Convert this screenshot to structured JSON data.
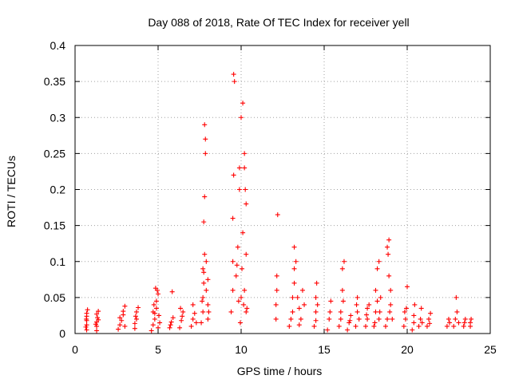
{
  "chart_data": {
    "type": "scatter",
    "title": "Day 088 of 2018, Rate Of TEC Index for receiver yell",
    "xlabel": "GPS time / hours",
    "ylabel": "ROTI / TECUs",
    "xlim": [
      0,
      25
    ],
    "ylim": [
      0,
      0.4
    ],
    "xticks": [
      0,
      5,
      10,
      15,
      20,
      25
    ],
    "xtick_labels": [
      "0",
      "5",
      "10",
      "15",
      "20",
      "25"
    ],
    "yticks": [
      0,
      0.05,
      0.1,
      0.15,
      0.2,
      0.25,
      0.3,
      0.35,
      0.4
    ],
    "ytick_labels": [
      "0",
      "0.05",
      "0.1",
      "0.15",
      "0.2",
      "0.25",
      "0.3",
      "0.35",
      "0.4"
    ],
    "grid": true,
    "marker": "+",
    "color": "#ff0000",
    "series": [
      {
        "name": "ROTI",
        "points": [
          [
            0.7,
            0.005
          ],
          [
            0.7,
            0.012
          ],
          [
            0.7,
            0.018
          ],
          [
            0.7,
            0.024
          ],
          [
            0.7,
            0.028
          ],
          [
            0.75,
            0.033
          ],
          [
            0.65,
            0.009
          ],
          [
            0.68,
            0.02
          ],
          [
            1.3,
            0.004
          ],
          [
            1.3,
            0.01
          ],
          [
            1.3,
            0.016
          ],
          [
            1.35,
            0.022
          ],
          [
            1.3,
            0.027
          ],
          [
            1.4,
            0.031
          ],
          [
            1.25,
            0.013
          ],
          [
            1.4,
            0.019
          ],
          [
            2.6,
            0.006
          ],
          [
            2.7,
            0.012
          ],
          [
            2.8,
            0.018
          ],
          [
            2.9,
            0.026
          ],
          [
            2.9,
            0.031
          ],
          [
            3.0,
            0.038
          ],
          [
            2.7,
            0.022
          ],
          [
            3.0,
            0.01
          ],
          [
            3.6,
            0.007
          ],
          [
            3.6,
            0.014
          ],
          [
            3.7,
            0.02
          ],
          [
            3.7,
            0.03
          ],
          [
            3.8,
            0.036
          ],
          [
            3.65,
            0.024
          ],
          [
            4.6,
            0.004
          ],
          [
            4.7,
            0.012
          ],
          [
            4.8,
            0.02
          ],
          [
            4.8,
            0.028
          ],
          [
            4.9,
            0.035
          ],
          [
            4.9,
            0.045
          ],
          [
            5.0,
            0.055
          ],
          [
            4.85,
            0.063
          ],
          [
            5.05,
            0.025
          ],
          [
            5.1,
            0.015
          ],
          [
            4.75,
            0.04
          ],
          [
            4.95,
            0.06
          ],
          [
            5.0,
            0.008
          ],
          [
            4.7,
            0.03
          ],
          [
            5.7,
            0.008
          ],
          [
            5.8,
            0.016
          ],
          [
            5.85,
            0.058
          ],
          [
            5.9,
            0.022
          ],
          [
            5.75,
            0.012
          ],
          [
            6.3,
            0.008
          ],
          [
            6.4,
            0.018
          ],
          [
            6.5,
            0.03
          ],
          [
            6.45,
            0.024
          ],
          [
            6.35,
            0.035
          ],
          [
            7.0,
            0.01
          ],
          [
            7.1,
            0.02
          ],
          [
            7.2,
            0.028
          ],
          [
            7.1,
            0.04
          ],
          [
            7.3,
            0.015
          ],
          [
            7.6,
            0.015
          ],
          [
            7.7,
            0.03
          ],
          [
            7.7,
            0.05
          ],
          [
            7.75,
            0.07
          ],
          [
            7.75,
            0.085
          ],
          [
            7.8,
            0.11
          ],
          [
            7.75,
            0.155
          ],
          [
            7.8,
            0.19
          ],
          [
            7.85,
            0.25
          ],
          [
            7.85,
            0.27
          ],
          [
            7.8,
            0.29
          ],
          [
            7.9,
            0.06
          ],
          [
            8.0,
            0.04
          ],
          [
            8.0,
            0.02
          ],
          [
            7.9,
            0.1
          ],
          [
            8.0,
            0.075
          ],
          [
            7.7,
            0.09
          ],
          [
            7.65,
            0.045
          ],
          [
            8.05,
            0.03
          ],
          [
            9.4,
            0.03
          ],
          [
            9.5,
            0.06
          ],
          [
            9.5,
            0.1
          ],
          [
            9.5,
            0.16
          ],
          [
            9.55,
            0.22
          ],
          [
            9.55,
            0.36
          ],
          [
            9.6,
            0.35
          ],
          [
            9.7,
            0.08
          ],
          [
            9.8,
            0.12
          ],
          [
            9.9,
            0.2
          ],
          [
            9.9,
            0.23
          ],
          [
            10.0,
            0.05
          ],
          [
            10.0,
            0.3
          ],
          [
            10.1,
            0.32
          ],
          [
            10.1,
            0.14
          ],
          [
            10.2,
            0.25
          ],
          [
            10.2,
            0.23
          ],
          [
            10.3,
            0.18
          ],
          [
            10.3,
            0.11
          ],
          [
            10.2,
            0.06
          ],
          [
            10.3,
            0.03
          ],
          [
            9.95,
            0.015
          ],
          [
            10.05,
            0.09
          ],
          [
            10.15,
            0.04
          ],
          [
            9.85,
            0.045
          ],
          [
            10.25,
            0.2
          ],
          [
            9.75,
            0.095
          ],
          [
            10.35,
            0.035
          ],
          [
            12.1,
            0.02
          ],
          [
            12.1,
            0.04
          ],
          [
            12.15,
            0.08
          ],
          [
            12.2,
            0.165
          ],
          [
            12.15,
            0.06
          ],
          [
            12.9,
            0.01
          ],
          [
            13.0,
            0.02
          ],
          [
            13.1,
            0.03
          ],
          [
            13.1,
            0.05
          ],
          [
            13.2,
            0.07
          ],
          [
            13.2,
            0.09
          ],
          [
            13.2,
            0.12
          ],
          [
            13.3,
            0.1
          ],
          [
            13.4,
            0.05
          ],
          [
            13.5,
            0.035
          ],
          [
            13.6,
            0.02
          ],
          [
            13.7,
            0.06
          ],
          [
            13.5,
            0.012
          ],
          [
            13.8,
            0.04
          ],
          [
            14.4,
            0.01
          ],
          [
            14.5,
            0.03
          ],
          [
            14.5,
            0.05
          ],
          [
            14.55,
            0.07
          ],
          [
            14.6,
            0.04
          ],
          [
            14.5,
            0.018
          ],
          [
            15.2,
            0.005
          ],
          [
            15.3,
            0.02
          ],
          [
            15.4,
            0.045
          ],
          [
            15.35,
            0.03
          ],
          [
            15.9,
            0.01
          ],
          [
            16.0,
            0.03
          ],
          [
            16.1,
            0.06
          ],
          [
            16.1,
            0.09
          ],
          [
            16.2,
            0.1
          ],
          [
            16.15,
            0.045
          ],
          [
            16.0,
            0.02
          ],
          [
            16.4,
            0.005
          ],
          [
            16.5,
            0.015
          ],
          [
            16.6,
            0.025
          ],
          [
            16.55,
            0.018
          ],
          [
            16.9,
            0.01
          ],
          [
            17.0,
            0.03
          ],
          [
            17.0,
            0.05
          ],
          [
            17.1,
            0.02
          ],
          [
            16.95,
            0.04
          ],
          [
            17.5,
            0.01
          ],
          [
            17.6,
            0.02
          ],
          [
            17.6,
            0.035
          ],
          [
            17.7,
            0.04
          ],
          [
            17.55,
            0.026
          ],
          [
            18.0,
            0.01
          ],
          [
            18.1,
            0.03
          ],
          [
            18.1,
            0.06
          ],
          [
            18.2,
            0.09
          ],
          [
            18.3,
            0.1
          ],
          [
            18.3,
            0.02
          ],
          [
            18.4,
            0.05
          ],
          [
            18.05,
            0.015
          ],
          [
            18.35,
            0.03
          ],
          [
            18.2,
            0.045
          ],
          [
            18.7,
            0.01
          ],
          [
            18.8,
            0.02
          ],
          [
            18.8,
            0.12
          ],
          [
            18.9,
            0.13
          ],
          [
            18.9,
            0.08
          ],
          [
            19.0,
            0.06
          ],
          [
            19.0,
            0.04
          ],
          [
            19.1,
            0.02
          ],
          [
            18.85,
            0.11
          ],
          [
            18.95,
            0.03
          ],
          [
            19.8,
            0.01
          ],
          [
            19.9,
            0.02
          ],
          [
            19.95,
            0.035
          ],
          [
            20.0,
            0.065
          ],
          [
            19.85,
            0.03
          ],
          [
            20.3,
            0.005
          ],
          [
            20.4,
            0.015
          ],
          [
            20.45,
            0.04
          ],
          [
            20.4,
            0.025
          ],
          [
            20.7,
            0.01
          ],
          [
            20.8,
            0.02
          ],
          [
            20.85,
            0.035
          ],
          [
            20.9,
            0.015
          ],
          [
            21.2,
            0.01
          ],
          [
            21.3,
            0.02
          ],
          [
            21.4,
            0.028
          ],
          [
            21.35,
            0.014
          ],
          [
            22.4,
            0.01
          ],
          [
            22.5,
            0.02
          ],
          [
            22.55,
            0.015
          ],
          [
            22.8,
            0.01
          ],
          [
            22.9,
            0.02
          ],
          [
            22.95,
            0.05
          ],
          [
            23.0,
            0.03
          ],
          [
            23.1,
            0.015
          ],
          [
            23.4,
            0.01
          ],
          [
            23.5,
            0.02
          ],
          [
            23.45,
            0.015
          ],
          [
            23.8,
            0.01
          ],
          [
            23.85,
            0.02
          ],
          [
            23.8,
            0.015
          ]
        ]
      }
    ]
  }
}
